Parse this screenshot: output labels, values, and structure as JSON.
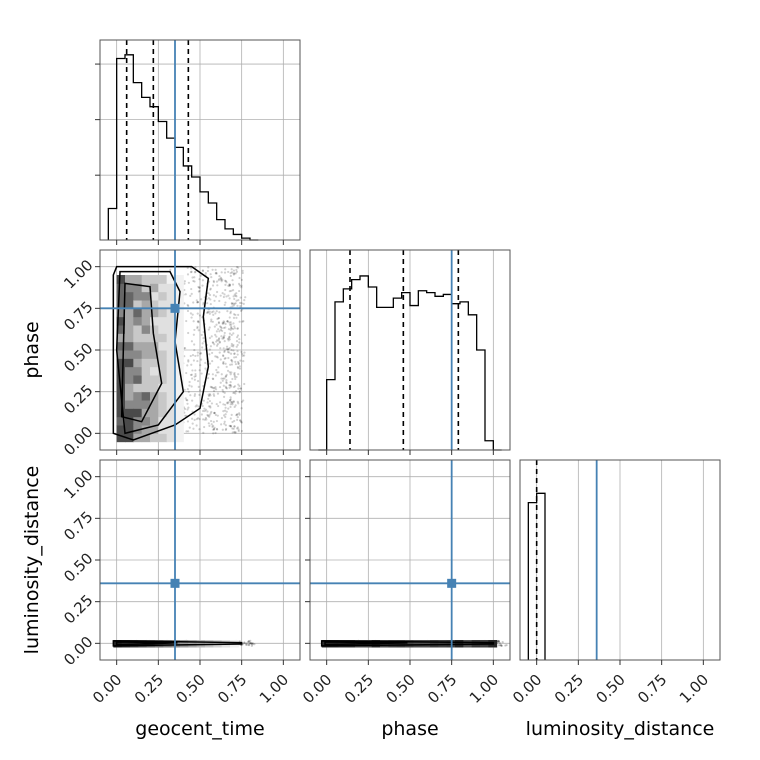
{
  "chart_data": {
    "type": "corner",
    "parameters": [
      "geocent_time",
      "phase",
      "luminosity_distance"
    ],
    "axis_range": [
      -0.1,
      1.1
    ],
    "ticks": [
      0.0,
      0.25,
      0.5,
      0.75,
      1.0
    ],
    "tick_labels": [
      "0.00",
      "0.25",
      "0.50",
      "0.75",
      "1.00"
    ],
    "grid": true,
    "truths": {
      "geocent_time": 0.35,
      "phase": 0.75,
      "luminosity_distance": 0.36
    },
    "truth_color": "#4682b4",
    "line_color": "#000000",
    "histograms": {
      "geocent_time": {
        "bin_edges": [
          -0.05,
          0.0,
          0.05,
          0.1,
          0.15,
          0.2,
          0.25,
          0.3,
          0.35,
          0.4,
          0.45,
          0.5,
          0.55,
          0.6,
          0.65,
          0.7,
          0.75,
          0.8,
          0.85
        ],
        "counts": [
          0.17,
          0.98,
          1.0,
          0.85,
          0.77,
          0.72,
          0.64,
          0.55,
          0.5,
          0.4,
          0.34,
          0.26,
          0.2,
          0.11,
          0.06,
          0.03,
          0.01,
          0.0
        ],
        "quantiles": [
          0.06,
          0.22,
          0.43
        ]
      },
      "phase": {
        "bin_edges": [
          -0.05,
          0.0,
          0.05,
          0.1,
          0.15,
          0.2,
          0.25,
          0.3,
          0.35,
          0.4,
          0.45,
          0.5,
          0.55,
          0.6,
          0.65,
          0.7,
          0.75,
          0.8,
          0.85,
          0.9,
          0.95,
          1.0,
          1.05
        ],
        "counts": [
          0.0,
          0.38,
          0.8,
          0.87,
          0.92,
          0.94,
          0.88,
          0.77,
          0.77,
          0.82,
          0.85,
          0.78,
          0.86,
          0.85,
          0.83,
          0.84,
          0.79,
          0.8,
          0.73,
          0.54,
          0.05,
          0.0
        ],
        "quantiles": [
          0.14,
          0.46,
          0.79
        ]
      },
      "luminosity_distance": {
        "bin_edges": [
          -0.05,
          0.0,
          0.05
        ],
        "counts": [
          0.85,
          0.9
        ],
        "quantiles": [
          0.0
        ]
      }
    },
    "contours_2d": [
      {
        "x": "geocent_time",
        "y": "phase",
        "levels": 3,
        "scatter_outliers": true
      },
      {
        "x": "geocent_time",
        "y": "luminosity_distance",
        "levels": 3,
        "scatter_outliers": true
      },
      {
        "x": "phase",
        "y": "luminosity_distance",
        "levels": 3,
        "scatter_outliers": true
      }
    ]
  }
}
